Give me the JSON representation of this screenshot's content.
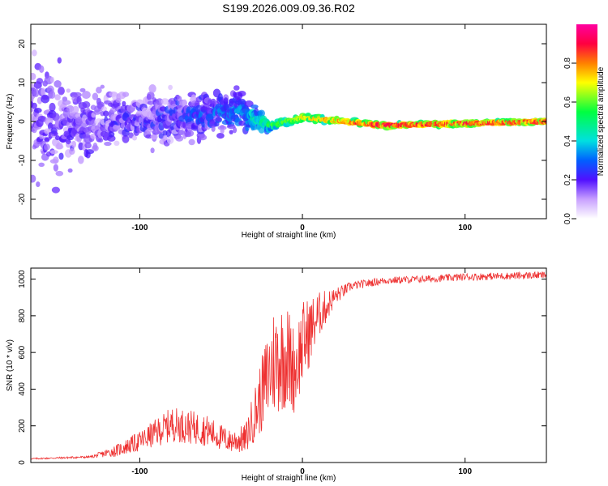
{
  "title": "S199.2026.009.09.36.R02",
  "chart_data": [
    {
      "type": "heatmap",
      "xlabel": "Height of straight line (km)",
      "ylabel": "Frequency (Hz)",
      "xlim": [
        -167,
        150
      ],
      "ylim": [
        -25,
        25
      ],
      "xticks": [
        -100,
        0,
        100
      ],
      "yticks": [
        -20,
        -10,
        0,
        10,
        20
      ],
      "colorbar": {
        "label": "Normalized spectral amplitude",
        "range": [
          0,
          1
        ],
        "ticks": [
          "0.0",
          "0.2",
          "0.4",
          "0.6",
          "0.8"
        ]
      },
      "description_ridge": [
        {
          "x": -167,
          "spread": 25,
          "center": 0,
          "amp": 0.05
        },
        {
          "x": -120,
          "spread": 12,
          "center": 0,
          "amp": 0.15
        },
        {
          "x": -80,
          "spread": 10,
          "center": 1,
          "amp": 0.2
        },
        {
          "x": -40,
          "spread": 8,
          "center": 3,
          "amp": 0.3
        },
        {
          "x": -20,
          "spread": 2,
          "center": -1,
          "amp": 0.5
        },
        {
          "x": 0,
          "spread": 1.5,
          "center": 1,
          "amp": 0.7
        },
        {
          "x": 50,
          "spread": 1,
          "center": -1,
          "amp": 0.9
        },
        {
          "x": 150,
          "spread": 1,
          "center": 0,
          "amp": 0.85
        }
      ]
    },
    {
      "type": "line",
      "xlabel": "Height of straight line (km)",
      "ylabel": "SNR (10 * v/v)",
      "xlim": [
        -167,
        150
      ],
      "ylim": [
        0,
        1060
      ],
      "xticks": [
        -100,
        0,
        100
      ],
      "yticks": [
        0,
        200,
        400,
        600,
        800,
        1000
      ],
      "color": "#ee3030",
      "envelope": {
        "x": [
          -167,
          -130,
          -115,
          -100,
          -80,
          -60,
          -45,
          -35,
          -25,
          -18,
          -10,
          -5,
          0,
          10,
          20,
          30,
          50,
          80,
          100,
          150
        ],
        "y": [
          20,
          30,
          60,
          110,
          200,
          170,
          110,
          120,
          350,
          520,
          560,
          480,
          620,
          790,
          900,
          960,
          990,
          1000,
          1010,
          1020
        ],
        "noise": [
          5,
          8,
          40,
          70,
          120,
          110,
          80,
          100,
          260,
          380,
          380,
          300,
          300,
          160,
          60,
          30,
          25,
          25,
          25,
          25
        ]
      }
    }
  ]
}
